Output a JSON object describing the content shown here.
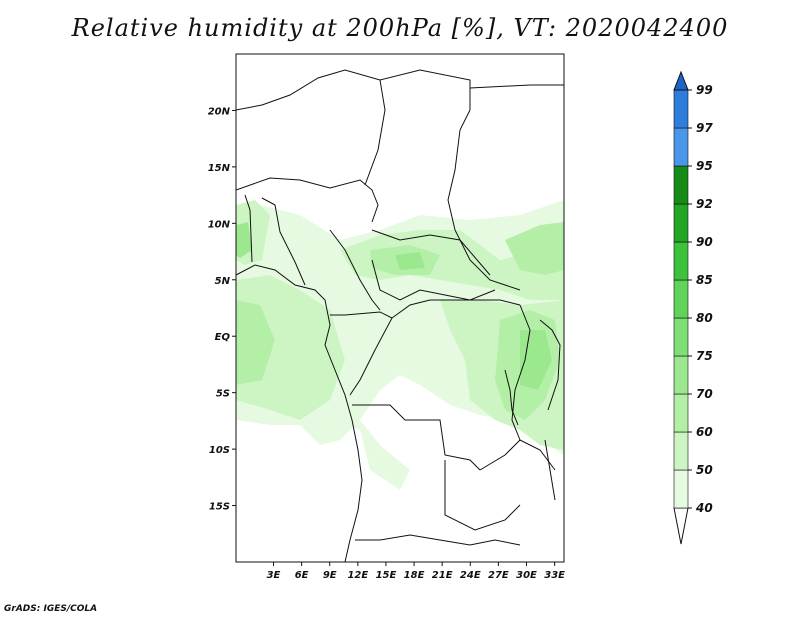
{
  "title": "Relative humidity at 200hPa [%], VT: 2020042400",
  "credit": "GrADS: IGES/COLA",
  "map": {
    "lon_range": [
      -1,
      34
    ],
    "lat_range": [
      -20,
      25
    ],
    "lat_labels": [
      {
        "lat": 20,
        "label": "20N"
      },
      {
        "lat": 15,
        "label": "15N"
      },
      {
        "lat": 10,
        "label": "10N"
      },
      {
        "lat": 5,
        "label": "5N"
      },
      {
        "lat": 0,
        "label": "EQ"
      },
      {
        "lat": -5,
        "label": "5S"
      },
      {
        "lat": -10,
        "label": "10S"
      },
      {
        "lat": -15,
        "label": "15S"
      }
    ],
    "lon_labels": [
      {
        "lon": 3,
        "label": "3E"
      },
      {
        "lon": 6,
        "label": "6E"
      },
      {
        "lon": 9,
        "label": "9E"
      },
      {
        "lon": 12,
        "label": "12E"
      },
      {
        "lon": 15,
        "label": "15E"
      },
      {
        "lon": 18,
        "label": "18E"
      },
      {
        "lon": 21,
        "label": "21E"
      },
      {
        "lon": 24,
        "label": "24E"
      },
      {
        "lon": 27,
        "label": "27E"
      },
      {
        "lon": 30,
        "label": "30E"
      },
      {
        "lon": 33,
        "label": "33E"
      }
    ]
  },
  "colorbar": {
    "levels": [
      "40",
      "50",
      "60",
      "70",
      "75",
      "80",
      "85",
      "90",
      "92",
      "95",
      "97",
      "99"
    ],
    "colors": [
      "#ffffff",
      "#e6fae1",
      "#cdf5c4",
      "#b4efa8",
      "#9be88f",
      "#7fdf75",
      "#61d35a",
      "#3ec23c",
      "#23a623",
      "#168c16",
      "#4a96e8",
      "#2e7ddc",
      "#1e64c8"
    ]
  },
  "humidity_field": {
    "colors": {
      "low": "#e6fae1",
      "mid": "#cdf5c4",
      "high": "#b4efa8",
      "peak": "#9be88f"
    }
  }
}
